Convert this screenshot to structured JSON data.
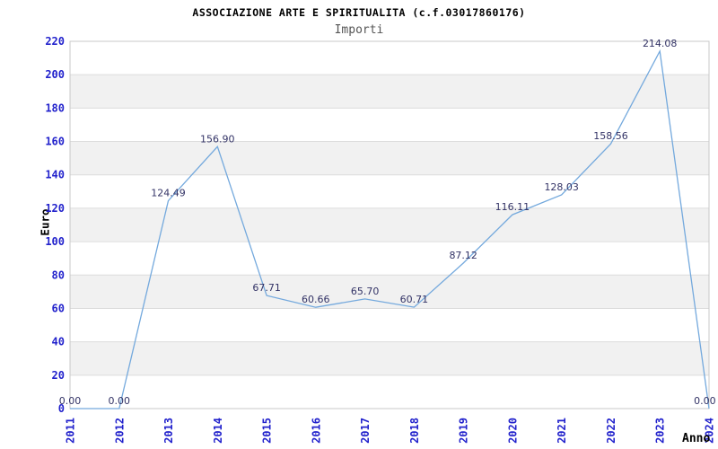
{
  "chart_data": {
    "type": "line",
    "title": "ASSOCIAZIONE ARTE E SPIRITUALITA (c.f.03017860176)",
    "subtitle": "Importi",
    "xlabel": "Anno",
    "ylabel": "Euro",
    "categories": [
      "2011",
      "2012",
      "2013",
      "2014",
      "2015",
      "2016",
      "2017",
      "2018",
      "2019",
      "2020",
      "2021",
      "2022",
      "2023",
      "2024"
    ],
    "values": [
      0.0,
      0.0,
      124.49,
      156.9,
      67.71,
      60.66,
      65.7,
      60.71,
      87.12,
      116.11,
      128.03,
      158.56,
      214.08,
      0.0
    ],
    "point_labels": [
      "0.00",
      "0.00",
      "124.49",
      "156.90",
      "67.71",
      "60.66",
      "65.70",
      "60.71",
      "87.12",
      "116.11",
      "128.03",
      "158.56",
      "214.08",
      "0.00"
    ],
    "ylim": [
      0,
      220
    ],
    "ytick_step": 20,
    "ytick_labels": [
      "0",
      "20",
      "40",
      "60",
      "80",
      "100",
      "120",
      "140",
      "160",
      "180",
      "200",
      "220"
    ],
    "grid": "horizontal-bands",
    "legend": "none",
    "colors": {
      "line": "#74a9dd",
      "tick_label": "#2222cc",
      "point_label": "#333366",
      "band": "#f1f1f1",
      "gridline": "#dcdcdc",
      "border": "#c8c8c8",
      "title": "#000000",
      "subtitle": "#555555"
    }
  }
}
